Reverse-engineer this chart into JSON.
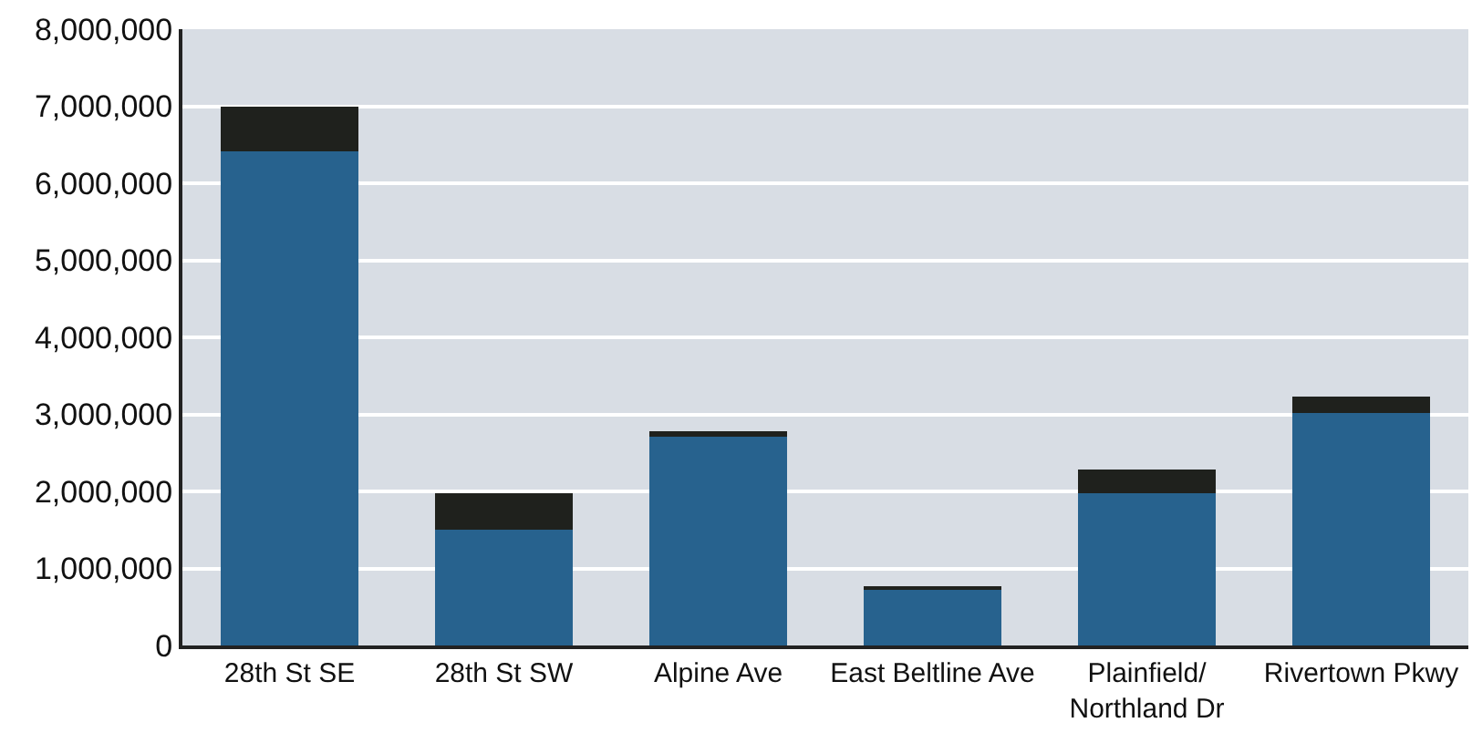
{
  "chart_data": {
    "type": "bar",
    "stacked": true,
    "categories": [
      "28th St SE",
      "28th St SW",
      "Alpine Ave",
      "East Beltline Ave",
      "Plainfield/\nNorthland Dr",
      "Rivertown Pkwy"
    ],
    "series": [
      {
        "color": "#27628e",
        "values": [
          6420000,
          1500000,
          2710000,
          720000,
          1980000,
          3020000
        ]
      },
      {
        "color": "#1f211d",
        "values": [
          580000,
          480000,
          70000,
          50000,
          310000,
          210000
        ]
      }
    ],
    "ylim": [
      0,
      8000000
    ],
    "yticks": [
      {
        "value": 0,
        "label": "0"
      },
      {
        "value": 1000000,
        "label": "1,000,000"
      },
      {
        "value": 2000000,
        "label": "2,000,000"
      },
      {
        "value": 3000000,
        "label": "3,000,000"
      },
      {
        "value": 4000000,
        "label": "4,000,000"
      },
      {
        "value": 5000000,
        "label": "5,000,000"
      },
      {
        "value": 6000000,
        "label": "6,000,000"
      },
      {
        "value": 7000000,
        "label": "7,000,000"
      },
      {
        "value": 8000000,
        "label": "8,000,000"
      }
    ],
    "grid": "y"
  }
}
